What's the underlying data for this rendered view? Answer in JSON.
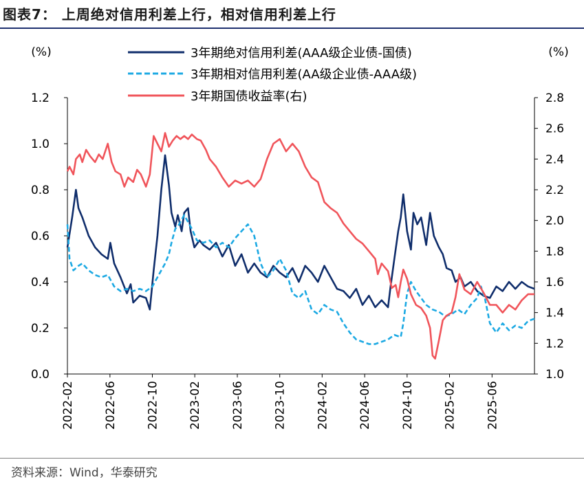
{
  "header": {
    "title": "图表7： 上周绝对信用利差上行，相对信用利差上行"
  },
  "footer": {
    "source": "资料来源：Wind，华泰研究"
  },
  "chart_data": {
    "type": "line",
    "left_unit": "(%)",
    "right_unit": "(%)",
    "y_left": {
      "min": 0.0,
      "max": 1.2,
      "ticks": [
        "0.0",
        "0.2",
        "0.4",
        "0.6",
        "0.8",
        "1.0",
        "1.2"
      ]
    },
    "y_right": {
      "min": 1.0,
      "max": 2.8,
      "ticks": [
        "1.0",
        "1.2",
        "1.4",
        "1.6",
        "1.8",
        "2.0",
        "2.2",
        "2.4",
        "2.6",
        "2.8"
      ]
    },
    "x_range": [
      2022.083,
      2025.75
    ],
    "x_ticks": [
      {
        "label": "2022-02",
        "x": 2022.083
      },
      {
        "label": "2022-06",
        "x": 2022.417
      },
      {
        "label": "2022-10",
        "x": 2022.75
      },
      {
        "label": "2023-02",
        "x": 2023.083
      },
      {
        "label": "2023-06",
        "x": 2023.417
      },
      {
        "label": "2023-10",
        "x": 2023.75
      },
      {
        "label": "2024-02",
        "x": 2024.083
      },
      {
        "label": "2024-06",
        "x": 2024.417
      },
      {
        "label": "2024-10",
        "x": 2024.75
      },
      {
        "label": "2025-02",
        "x": 2025.083
      },
      {
        "label": "2025-06",
        "x": 2025.417
      }
    ],
    "series": [
      {
        "name": "3年期绝对信用利差(AAA级企业债-国债)",
        "axis": "left",
        "color": "#0f2d6b",
        "dash": "solid",
        "points": [
          [
            2022.083,
            0.55
          ],
          [
            2022.12,
            0.68
          ],
          [
            2022.15,
            0.8
          ],
          [
            2022.17,
            0.72
          ],
          [
            2022.2,
            0.68
          ],
          [
            2022.25,
            0.6
          ],
          [
            2022.3,
            0.55
          ],
          [
            2022.35,
            0.52
          ],
          [
            2022.4,
            0.5
          ],
          [
            2022.42,
            0.57
          ],
          [
            2022.45,
            0.48
          ],
          [
            2022.5,
            0.42
          ],
          [
            2022.55,
            0.35
          ],
          [
            2022.58,
            0.39
          ],
          [
            2022.6,
            0.31
          ],
          [
            2022.65,
            0.34
          ],
          [
            2022.7,
            0.33
          ],
          [
            2022.73,
            0.28
          ],
          [
            2022.76,
            0.45
          ],
          [
            2022.79,
            0.6
          ],
          [
            2022.82,
            0.8
          ],
          [
            2022.85,
            0.95
          ],
          [
            2022.88,
            0.82
          ],
          [
            2022.9,
            0.7
          ],
          [
            2022.93,
            0.64
          ],
          [
            2022.95,
            0.69
          ],
          [
            2022.98,
            0.62
          ],
          [
            2023.0,
            0.7
          ],
          [
            2023.03,
            0.72
          ],
          [
            2023.05,
            0.62
          ],
          [
            2023.08,
            0.55
          ],
          [
            2023.12,
            0.58
          ],
          [
            2023.15,
            0.56
          ],
          [
            2023.2,
            0.54
          ],
          [
            2023.25,
            0.57
          ],
          [
            2023.3,
            0.51
          ],
          [
            2023.35,
            0.56
          ],
          [
            2023.4,
            0.47
          ],
          [
            2023.45,
            0.52
          ],
          [
            2023.5,
            0.44
          ],
          [
            2023.55,
            0.48
          ],
          [
            2023.6,
            0.44
          ],
          [
            2023.65,
            0.42
          ],
          [
            2023.7,
            0.47
          ],
          [
            2023.75,
            0.44
          ],
          [
            2023.8,
            0.42
          ],
          [
            2023.85,
            0.46
          ],
          [
            2023.9,
            0.4
          ],
          [
            2023.95,
            0.47
          ],
          [
            2024.0,
            0.44
          ],
          [
            2024.05,
            0.4
          ],
          [
            2024.1,
            0.47
          ],
          [
            2024.15,
            0.42
          ],
          [
            2024.2,
            0.37
          ],
          [
            2024.25,
            0.36
          ],
          [
            2024.3,
            0.33
          ],
          [
            2024.35,
            0.37
          ],
          [
            2024.4,
            0.3
          ],
          [
            2024.45,
            0.34
          ],
          [
            2024.5,
            0.29
          ],
          [
            2024.55,
            0.32
          ],
          [
            2024.6,
            0.29
          ],
          [
            2024.62,
            0.38
          ],
          [
            2024.65,
            0.5
          ],
          [
            2024.68,
            0.62
          ],
          [
            2024.7,
            0.68
          ],
          [
            2024.72,
            0.78
          ],
          [
            2024.75,
            0.62
          ],
          [
            2024.78,
            0.54
          ],
          [
            2024.8,
            0.7
          ],
          [
            2024.83,
            0.65
          ],
          [
            2024.86,
            0.68
          ],
          [
            2024.9,
            0.56
          ],
          [
            2024.93,
            0.7
          ],
          [
            2024.96,
            0.6
          ],
          [
            2025.0,
            0.55
          ],
          [
            2025.03,
            0.52
          ],
          [
            2025.06,
            0.46
          ],
          [
            2025.1,
            0.45
          ],
          [
            2025.13,
            0.4
          ],
          [
            2025.17,
            0.42
          ],
          [
            2025.2,
            0.38
          ],
          [
            2025.25,
            0.4
          ],
          [
            2025.3,
            0.36
          ],
          [
            2025.35,
            0.34
          ],
          [
            2025.4,
            0.33
          ],
          [
            2025.45,
            0.38
          ],
          [
            2025.5,
            0.36
          ],
          [
            2025.55,
            0.4
          ],
          [
            2025.6,
            0.37
          ],
          [
            2025.65,
            0.4
          ],
          [
            2025.7,
            0.38
          ],
          [
            2025.75,
            0.37
          ]
        ]
      },
      {
        "name": "3年期相对信用利差(AA级企业债-AAA级)",
        "axis": "left",
        "color": "#1ca9e3",
        "dash": "dashed",
        "points": [
          [
            2022.083,
            0.65
          ],
          [
            2022.1,
            0.5
          ],
          [
            2022.13,
            0.45
          ],
          [
            2022.17,
            0.47
          ],
          [
            2022.2,
            0.48
          ],
          [
            2022.25,
            0.45
          ],
          [
            2022.3,
            0.43
          ],
          [
            2022.35,
            0.42
          ],
          [
            2022.4,
            0.43
          ],
          [
            2022.45,
            0.38
          ],
          [
            2022.5,
            0.36
          ],
          [
            2022.55,
            0.37
          ],
          [
            2022.6,
            0.36
          ],
          [
            2022.65,
            0.37
          ],
          [
            2022.7,
            0.36
          ],
          [
            2022.75,
            0.38
          ],
          [
            2022.8,
            0.43
          ],
          [
            2022.85,
            0.48
          ],
          [
            2022.88,
            0.52
          ],
          [
            2022.9,
            0.57
          ],
          [
            2022.93,
            0.63
          ],
          [
            2022.96,
            0.65
          ],
          [
            2023.0,
            0.69
          ],
          [
            2023.03,
            0.66
          ],
          [
            2023.06,
            0.63
          ],
          [
            2023.1,
            0.58
          ],
          [
            2023.15,
            0.57
          ],
          [
            2023.2,
            0.58
          ],
          [
            2023.25,
            0.55
          ],
          [
            2023.3,
            0.57
          ],
          [
            2023.35,
            0.55
          ],
          [
            2023.4,
            0.59
          ],
          [
            2023.45,
            0.62
          ],
          [
            2023.5,
            0.65
          ],
          [
            2023.55,
            0.6
          ],
          [
            2023.6,
            0.48
          ],
          [
            2023.65,
            0.42
          ],
          [
            2023.7,
            0.45
          ],
          [
            2023.75,
            0.5
          ],
          [
            2023.8,
            0.45
          ],
          [
            2023.85,
            0.35
          ],
          [
            2023.9,
            0.33
          ],
          [
            2023.95,
            0.36
          ],
          [
            2024.0,
            0.28
          ],
          [
            2024.05,
            0.26
          ],
          [
            2024.1,
            0.3
          ],
          [
            2024.15,
            0.28
          ],
          [
            2024.2,
            0.27
          ],
          [
            2024.25,
            0.22
          ],
          [
            2024.3,
            0.18
          ],
          [
            2024.35,
            0.15
          ],
          [
            2024.4,
            0.14
          ],
          [
            2024.45,
            0.13
          ],
          [
            2024.5,
            0.13
          ],
          [
            2024.55,
            0.14
          ],
          [
            2024.6,
            0.15
          ],
          [
            2024.65,
            0.17
          ],
          [
            2024.7,
            0.16
          ],
          [
            2024.72,
            0.22
          ],
          [
            2024.75,
            0.35
          ],
          [
            2024.78,
            0.4
          ],
          [
            2024.82,
            0.36
          ],
          [
            2024.86,
            0.33
          ],
          [
            2024.9,
            0.3
          ],
          [
            2024.95,
            0.28
          ],
          [
            2025.0,
            0.27
          ],
          [
            2025.05,
            0.25
          ],
          [
            2025.1,
            0.26
          ],
          [
            2025.15,
            0.28
          ],
          [
            2025.2,
            0.26
          ],
          [
            2025.25,
            0.3
          ],
          [
            2025.3,
            0.33
          ],
          [
            2025.33,
            0.38
          ],
          [
            2025.36,
            0.33
          ],
          [
            2025.4,
            0.22
          ],
          [
            2025.45,
            0.18
          ],
          [
            2025.5,
            0.22
          ],
          [
            2025.55,
            0.19
          ],
          [
            2025.6,
            0.21
          ],
          [
            2025.65,
            0.2
          ],
          [
            2025.7,
            0.23
          ],
          [
            2025.75,
            0.24
          ]
        ]
      },
      {
        "name": "3年期国债收益率(右)",
        "axis": "right",
        "color": "#f0545a",
        "dash": "solid",
        "points": [
          [
            2022.083,
            2.32
          ],
          [
            2022.1,
            2.35
          ],
          [
            2022.13,
            2.3
          ],
          [
            2022.15,
            2.4
          ],
          [
            2022.18,
            2.43
          ],
          [
            2022.2,
            2.38
          ],
          [
            2022.23,
            2.46
          ],
          [
            2022.26,
            2.42
          ],
          [
            2022.3,
            2.38
          ],
          [
            2022.33,
            2.43
          ],
          [
            2022.36,
            2.4
          ],
          [
            2022.4,
            2.5
          ],
          [
            2022.43,
            2.38
          ],
          [
            2022.46,
            2.32
          ],
          [
            2022.5,
            2.3
          ],
          [
            2022.53,
            2.22
          ],
          [
            2022.56,
            2.28
          ],
          [
            2022.6,
            2.25
          ],
          [
            2022.63,
            2.33
          ],
          [
            2022.66,
            2.3
          ],
          [
            2022.7,
            2.22
          ],
          [
            2022.73,
            2.3
          ],
          [
            2022.76,
            2.55
          ],
          [
            2022.79,
            2.5
          ],
          [
            2022.82,
            2.45
          ],
          [
            2022.85,
            2.57
          ],
          [
            2022.88,
            2.48
          ],
          [
            2022.91,
            2.52
          ],
          [
            2022.94,
            2.55
          ],
          [
            2022.97,
            2.53
          ],
          [
            2023.0,
            2.55
          ],
          [
            2023.03,
            2.53
          ],
          [
            2023.06,
            2.56
          ],
          [
            2023.1,
            2.53
          ],
          [
            2023.13,
            2.52
          ],
          [
            2023.17,
            2.46
          ],
          [
            2023.2,
            2.4
          ],
          [
            2023.25,
            2.35
          ],
          [
            2023.3,
            2.28
          ],
          [
            2023.35,
            2.22
          ],
          [
            2023.4,
            2.26
          ],
          [
            2023.45,
            2.24
          ],
          [
            2023.5,
            2.26
          ],
          [
            2023.55,
            2.22
          ],
          [
            2023.6,
            2.27
          ],
          [
            2023.65,
            2.4
          ],
          [
            2023.7,
            2.5
          ],
          [
            2023.75,
            2.53
          ],
          [
            2023.8,
            2.45
          ],
          [
            2023.85,
            2.5
          ],
          [
            2023.9,
            2.45
          ],
          [
            2023.95,
            2.35
          ],
          [
            2024.0,
            2.28
          ],
          [
            2024.05,
            2.25
          ],
          [
            2024.1,
            2.12
          ],
          [
            2024.15,
            2.08
          ],
          [
            2024.2,
            2.05
          ],
          [
            2024.25,
            1.98
          ],
          [
            2024.3,
            1.93
          ],
          [
            2024.35,
            1.88
          ],
          [
            2024.4,
            1.85
          ],
          [
            2024.45,
            1.8
          ],
          [
            2024.5,
            1.75
          ],
          [
            2024.52,
            1.65
          ],
          [
            2024.55,
            1.72
          ],
          [
            2024.6,
            1.67
          ],
          [
            2024.63,
            1.56
          ],
          [
            2024.66,
            1.58
          ],
          [
            2024.68,
            1.5
          ],
          [
            2024.7,
            1.6
          ],
          [
            2024.72,
            1.68
          ],
          [
            2024.75,
            1.62
          ],
          [
            2024.78,
            1.52
          ],
          [
            2024.82,
            1.45
          ],
          [
            2024.86,
            1.43
          ],
          [
            2024.9,
            1.38
          ],
          [
            2024.93,
            1.3
          ],
          [
            2024.95,
            1.12
          ],
          [
            2024.97,
            1.1
          ],
          [
            2025.0,
            1.22
          ],
          [
            2025.03,
            1.35
          ],
          [
            2025.06,
            1.38
          ],
          [
            2025.1,
            1.4
          ],
          [
            2025.13,
            1.5
          ],
          [
            2025.16,
            1.65
          ],
          [
            2025.2,
            1.55
          ],
          [
            2025.25,
            1.52
          ],
          [
            2025.3,
            1.6
          ],
          [
            2025.35,
            1.53
          ],
          [
            2025.4,
            1.45
          ],
          [
            2025.45,
            1.45
          ],
          [
            2025.5,
            1.4
          ],
          [
            2025.55,
            1.45
          ],
          [
            2025.6,
            1.42
          ],
          [
            2025.65,
            1.48
          ],
          [
            2025.7,
            1.52
          ],
          [
            2025.75,
            1.52
          ]
        ]
      }
    ]
  }
}
